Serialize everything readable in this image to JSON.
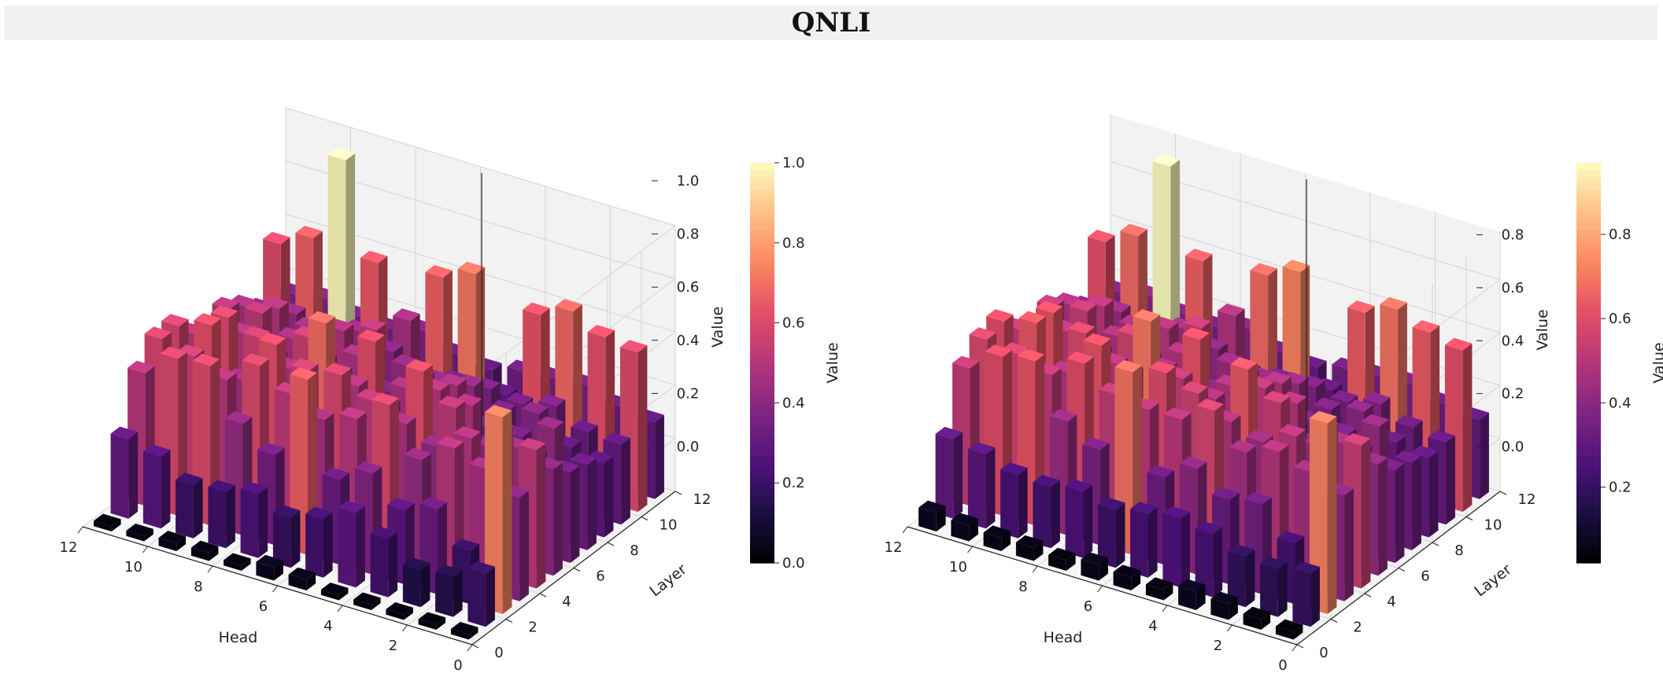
{
  "title": "QNLI",
  "chart_data": [
    {
      "type": "bar3d",
      "xlabel": "Head",
      "ylabel": "Layer",
      "zlabel": "Value",
      "colorbar_label": "Value",
      "colormap": "magma",
      "x_ticks": [
        "0",
        "2",
        "4",
        "6",
        "8",
        "10",
        "12"
      ],
      "y_ticks": [
        "0",
        "2",
        "4",
        "6",
        "8",
        "10",
        "12"
      ],
      "z_ticks": [
        "0.0",
        "0.2",
        "0.4",
        "0.6",
        "0.8",
        "1.0"
      ],
      "z_tick_values": [
        0.0,
        0.2,
        0.4,
        0.6,
        0.8,
        1.0
      ],
      "zlim": [
        0,
        1.0
      ],
      "colorbar_ticks": [
        "0.0",
        "0.2",
        "0.4",
        "0.6",
        "0.8",
        "1.0"
      ],
      "colorbar_tick_values": [
        0.0,
        0.2,
        0.4,
        0.6,
        0.8,
        1.0
      ],
      "colorbar_range": [
        0.0,
        1.0
      ],
      "heads": 12,
      "layers": 12,
      "values": [
        [
          0.02,
          0.02,
          0.02,
          0.02,
          0.02,
          0.04,
          0.05,
          0.02,
          0.03,
          0.03,
          0.02,
          0.02
        ],
        [
          0.2,
          0.15,
          0.14,
          0.22,
          0.28,
          0.22,
          0.19,
          0.24,
          0.21,
          0.2,
          0.27,
          0.3
        ],
        [
          0.74,
          0.2,
          0.32,
          0.28,
          0.38,
          0.32,
          0.66,
          0.34,
          0.42,
          0.6,
          0.59,
          0.5
        ],
        [
          0.39,
          0.46,
          0.5,
          0.42,
          0.59,
          0.5,
          0.46,
          0.52,
          0.59,
          0.5,
          0.55,
          0.58
        ],
        [
          0.52,
          0.55,
          0.49,
          0.42,
          0.47,
          0.52,
          0.58,
          0.56,
          0.62,
          0.45,
          0.62,
          0.58
        ],
        [
          0.4,
          0.44,
          0.41,
          0.52,
          0.62,
          0.45,
          0.49,
          0.69,
          0.48,
          0.56,
          0.6,
          0.5
        ],
        [
          0.34,
          0.36,
          0.37,
          0.48,
          0.5,
          0.47,
          0.61,
          0.45,
          0.55,
          0.44,
          0.49,
          0.48
        ],
        [
          0.32,
          0.42,
          0.35,
          0.35,
          0.47,
          0.46,
          0.37,
          0.47,
          0.41,
          0.46,
          0.52,
          0.5
        ],
        [
          0.28,
          0.3,
          0.39,
          0.36,
          0.42,
          0.4,
          0.42,
          0.52,
          0.48,
          0.45,
          0.49,
          0.46
        ],
        [
          0.3,
          0.31,
          0.37,
          0.34,
          0.36,
          0.35,
          0.33,
          0.39,
          0.43,
          0.4,
          0.42,
          0.4
        ],
        [
          0.6,
          0.62,
          0.68,
          0.63,
          0.29,
          0.71,
          0.66,
          0.46,
          0.64,
          0.99,
          0.66,
          0.6
        ],
        [
          0.29,
          0.31,
          0.35,
          0.34,
          0.33,
          0.3,
          0.32,
          0.37,
          0.34,
          0.35,
          0.38,
          0.36
        ]
      ]
    },
    {
      "type": "bar3d",
      "xlabel": "Head",
      "ylabel": "Layer",
      "zlabel": "Value",
      "colorbar_label": "Value",
      "colormap": "magma",
      "x_ticks": [
        "0",
        "2",
        "4",
        "6",
        "8",
        "10",
        "12"
      ],
      "y_ticks": [
        "0",
        "2",
        "4",
        "6",
        "8",
        "10",
        "12"
      ],
      "z_ticks": [
        "0.0",
        "0.2",
        "0.4",
        "0.6",
        "0.8"
      ],
      "z_tick_values": [
        0.0,
        0.2,
        0.4,
        0.6,
        0.8
      ],
      "zlim": [
        0,
        0.98
      ],
      "colorbar_ticks": [
        "0.2",
        "0.4",
        "0.6",
        "0.8"
      ],
      "colorbar_tick_values": [
        0.2,
        0.4,
        0.6,
        0.8
      ],
      "colorbar_range": [
        0.02,
        0.97
      ],
      "heads": 12,
      "layers": 12,
      "values": [
        [
          0.03,
          0.04,
          0.06,
          0.07,
          0.04,
          0.05,
          0.06,
          0.04,
          0.05,
          0.05,
          0.06,
          0.07
        ],
        [
          0.2,
          0.18,
          0.19,
          0.24,
          0.26,
          0.24,
          0.22,
          0.25,
          0.23,
          0.24,
          0.28,
          0.3
        ],
        [
          0.72,
          0.23,
          0.34,
          0.32,
          0.4,
          0.33,
          0.69,
          0.36,
          0.43,
          0.62,
          0.6,
          0.52
        ],
        [
          0.4,
          0.45,
          0.49,
          0.45,
          0.57,
          0.5,
          0.5,
          0.52,
          0.6,
          0.52,
          0.56,
          0.58
        ],
        [
          0.54,
          0.56,
          0.5,
          0.44,
          0.48,
          0.55,
          0.59,
          0.55,
          0.62,
          0.48,
          0.63,
          0.6
        ],
        [
          0.42,
          0.46,
          0.42,
          0.54,
          0.63,
          0.48,
          0.52,
          0.7,
          0.5,
          0.58,
          0.62,
          0.52
        ],
        [
          0.35,
          0.38,
          0.38,
          0.49,
          0.51,
          0.48,
          0.62,
          0.47,
          0.56,
          0.46,
          0.5,
          0.48
        ],
        [
          0.33,
          0.43,
          0.36,
          0.37,
          0.48,
          0.47,
          0.38,
          0.48,
          0.42,
          0.47,
          0.53,
          0.51
        ],
        [
          0.3,
          0.32,
          0.4,
          0.37,
          0.43,
          0.41,
          0.43,
          0.53,
          0.49,
          0.46,
          0.5,
          0.47
        ],
        [
          0.31,
          0.33,
          0.38,
          0.35,
          0.37,
          0.36,
          0.35,
          0.4,
          0.44,
          0.41,
          0.43,
          0.41
        ],
        [
          0.61,
          0.64,
          0.69,
          0.64,
          0.31,
          0.72,
          0.67,
          0.48,
          0.65,
          0.97,
          0.67,
          0.61
        ],
        [
          0.3,
          0.32,
          0.36,
          0.35,
          0.34,
          0.31,
          0.33,
          0.38,
          0.35,
          0.36,
          0.39,
          0.37
        ]
      ]
    }
  ]
}
